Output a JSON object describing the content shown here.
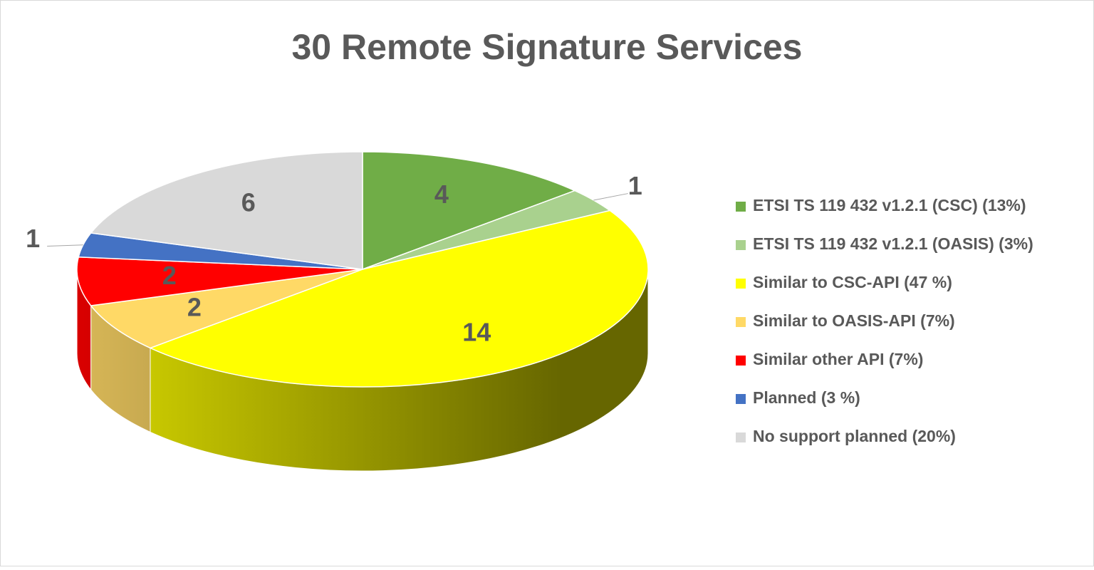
{
  "chart_data": {
    "type": "pie3d",
    "title": "30 Remote Signature Services",
    "categories": [
      "ETSI TS 119 432 v1.2.1 (CSC) (13%)",
      "ETSI TS 119 432 v1.2.1 (OASIS) (3%)",
      "Similar to CSC-API (47 %)",
      "Similar to OASIS-API (7%)",
      "Similar other API (7%)",
      "Planned (3 %)",
      "No support planned (20%)"
    ],
    "values": [
      4,
      1,
      14,
      2,
      2,
      1,
      6
    ],
    "colors": [
      "#70ad47",
      "#a9d18e",
      "#ffff00",
      "#ffd966",
      "#ff0000",
      "#4472c4",
      "#d9d9d9"
    ],
    "legend": "right"
  }
}
